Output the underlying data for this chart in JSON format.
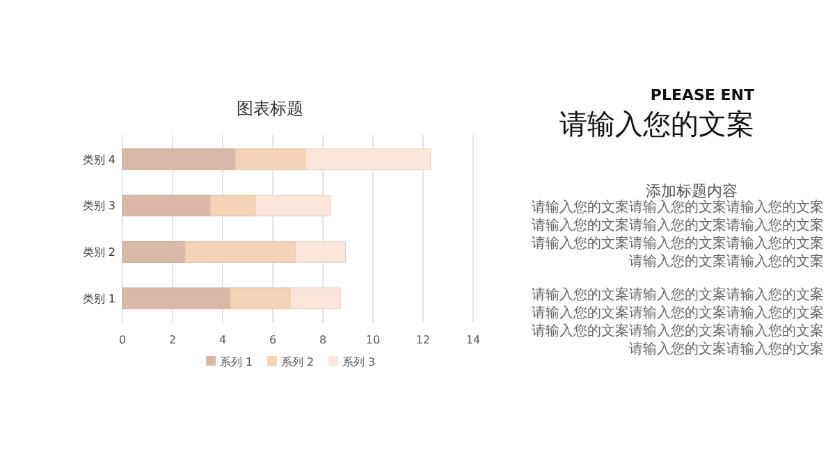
{
  "chart_data": {
    "type": "bar",
    "orientation": "horizontal",
    "stacked": true,
    "title": "图表标题",
    "categories": [
      "类别 4",
      "类别 3",
      "类别 2",
      "类别 1"
    ],
    "series": [
      {
        "name": "系列 1",
        "color": "#d9b9a6",
        "values": [
          4.5,
          3.5,
          2.5,
          4.3
        ]
      },
      {
        "name": "系列 2",
        "color": "#f6d2b6",
        "values": [
          2.8,
          1.8,
          4.4,
          2.4
        ]
      },
      {
        "name": "系列 3",
        "color": "#fce6da",
        "values": [
          5,
          3,
          2,
          2
        ]
      }
    ],
    "xlim": [
      0,
      14
    ],
    "xticks": [
      0,
      2,
      4,
      6,
      8,
      10,
      12,
      14
    ],
    "grid": "x",
    "legend": "bottom",
    "annotations": [
      "PLEASE ENT",
      "请输入您的文案",
      "添加标题内容",
      "请输入您的文案请输入您的文案请输入您的文案请输入您的文案请输入您的文案请输入您的文案请输入您的文案请输入您的文案请输入您的文案请输入您的文案请输入您的文案",
      "请输入您的文案请输入您的文案请输入您的文案请输入您的文案请输入您的文案请输入您的文案请输入您的文案请输入您的文案请输入您的文案请输入您的文案请输入您的文案"
    ]
  }
}
